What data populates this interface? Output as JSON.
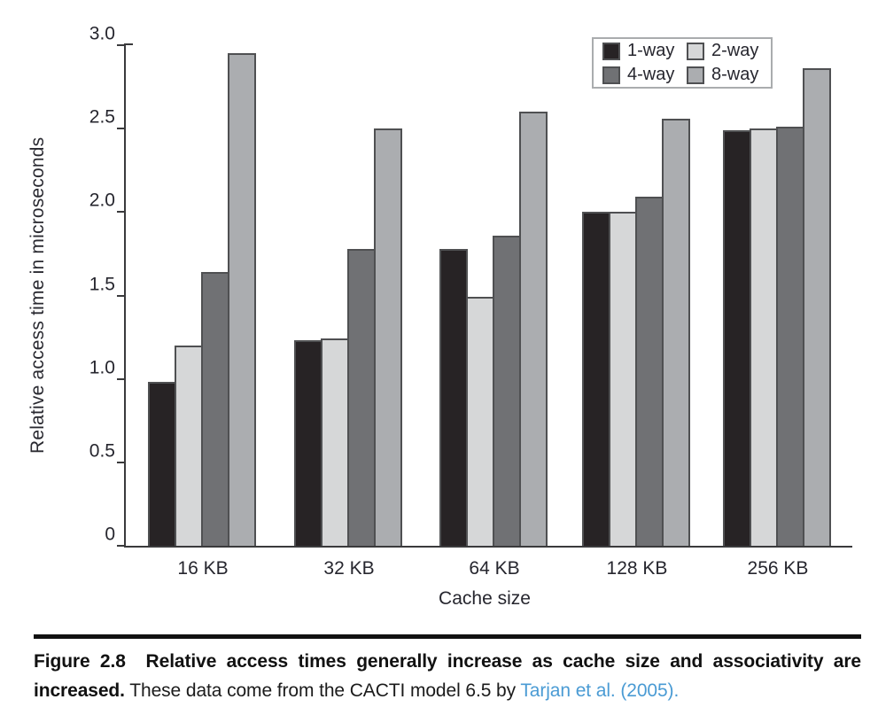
{
  "figure": {
    "caption_label": "Figure 2.8",
    "caption_bold": "Relative access times generally increase as cache size and associativity are increased.",
    "caption_regular": "These data come from the CACTI model 6.5 by",
    "caption_link": "Tarjan et al. (2005).",
    "link_color": "#4a9bd4"
  },
  "chart_data": {
    "type": "bar",
    "title": "",
    "xlabel": "Cache size",
    "ylabel": "Relative access time in microseconds",
    "categories": [
      "16 KB",
      "32 KB",
      "64 KB",
      "128 KB",
      "256 KB"
    ],
    "series": [
      {
        "name": "1-way",
        "color": "#272325",
        "values": [
          0.98,
          1.23,
          1.78,
          2.0,
          2.49
        ]
      },
      {
        "name": "2-way",
        "color": "#d6d7d8",
        "values": [
          1.2,
          1.24,
          1.49,
          2.0,
          2.5
        ]
      },
      {
        "name": "4-way",
        "color": "#707174",
        "values": [
          1.64,
          1.78,
          1.86,
          2.09,
          2.51
        ]
      },
      {
        "name": "8-way",
        "color": "#abadb0",
        "values": [
          2.95,
          2.5,
          2.6,
          2.56,
          2.86
        ]
      }
    ],
    "ylim": [
      0,
      3.0
    ],
    "ytick_labels": [
      "0",
      "0.5",
      "1.0",
      "1.5",
      "2.0",
      "2.5",
      "3.0"
    ],
    "ytick_values": [
      0,
      0.5,
      1.0,
      1.5,
      2.0,
      2.5,
      3.0
    ],
    "legend_position": "top-right",
    "grid": false,
    "bar_border_color": "#4f5052",
    "axis_color": "#3a3a3c"
  }
}
